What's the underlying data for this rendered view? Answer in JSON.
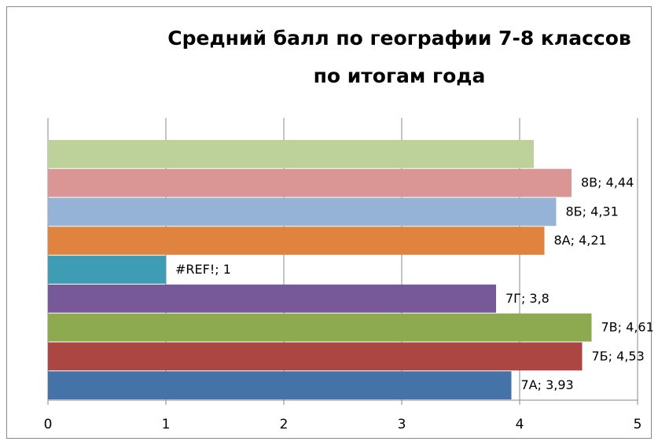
{
  "chart_data": {
    "type": "bar",
    "orientation": "horizontal",
    "title": [
      "Средний балл по географии 7-8 классов",
      "по итогам года"
    ],
    "values": [
      3.93,
      4.53,
      4.61,
      3.8,
      1,
      4.21,
      4.31,
      4.44,
      4.12
    ],
    "value_labels": [
      "7А; 3,93",
      "7Б; 4,53",
      "7В; 4,61",
      "7Г; 3,8",
      "#REF!; 1",
      "8А; 4,21",
      "8Б; 4,31",
      "8В; 4,44",
      null
    ],
    "colors": [
      "#4573a7",
      "#ab4643",
      "#8eaa50",
      "#77599a",
      "#3e9db4",
      "#e0833f",
      "#95b3d7",
      "#d99694",
      "#bcd29a"
    ],
    "xlim": [
      0,
      5
    ],
    "xticks": [
      0,
      1,
      2,
      3,
      4,
      5
    ],
    "grid": true
  }
}
